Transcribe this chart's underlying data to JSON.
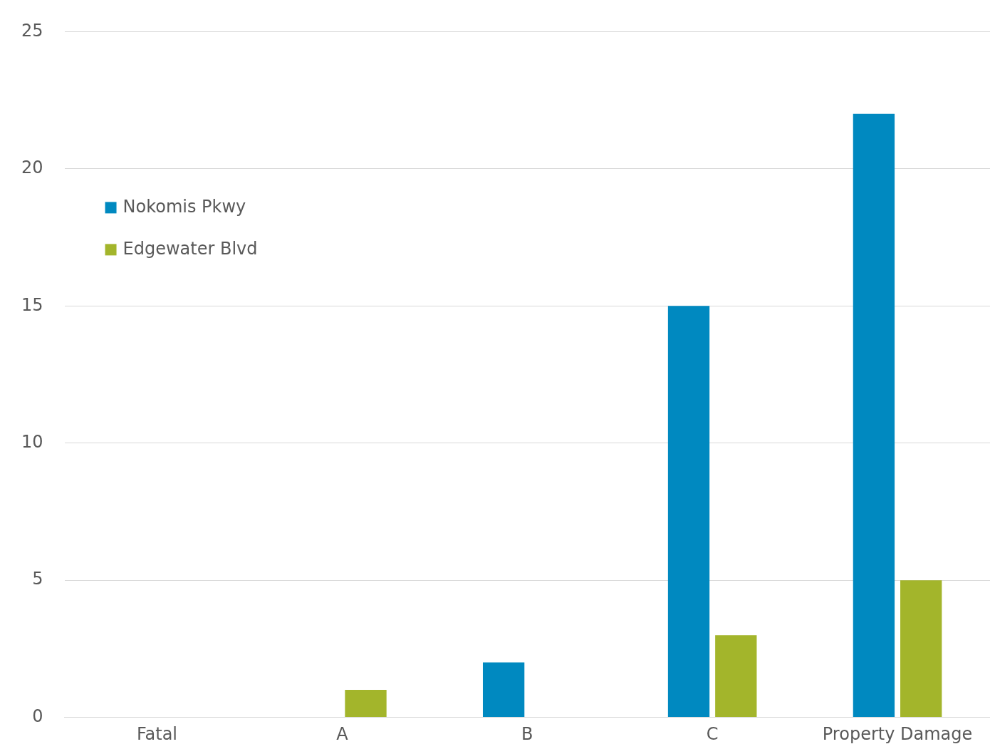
{
  "chart_data": {
    "type": "bar",
    "categories": [
      "Fatal",
      "A",
      "B",
      "C",
      "Property Damage"
    ],
    "series": [
      {
        "name": "Nokomis Pkwy",
        "color": "#0089c0",
        "values": [
          0,
          0,
          2,
          15,
          22
        ]
      },
      {
        "name": "Edgewater Blvd",
        "color": "#a3b52b",
        "values": [
          0,
          1,
          0,
          3,
          5
        ]
      }
    ],
    "ylim": [
      0,
      25
    ],
    "yticks": [
      0,
      5,
      10,
      15,
      20,
      25
    ],
    "grid": "y",
    "legend": "top left"
  }
}
